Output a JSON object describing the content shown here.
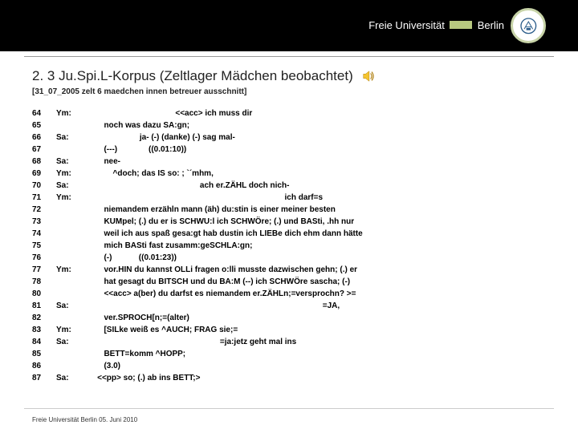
{
  "header": {
    "logo_text": "Freie Universität",
    "logo_city": "Berlin",
    "seal_stroke": "#c8d4a8",
    "seal_bg": "#ffffff"
  },
  "title": "2. 3 Ju.Spi.L-Korpus (Zeltlager Mädchen beobachtet)",
  "subtitle": "[31_07_2005 zelt 6 maedchen innen betreuer ausschnitt]",
  "transcript": [
    {
      "n": "64",
      "sp": "Ym:",
      "t": "                                       <<acc> ich muss dir"
    },
    {
      "n": "65",
      "sp": "",
      "t": "       noch was dazu SA:gn;"
    },
    {
      "n": "66",
      "sp": "Sa:",
      "t": "                       ja- (-) (danke) (-) sag mal-"
    },
    {
      "n": "67",
      "sp": "",
      "t": "       (---)              ((0.01:10))"
    },
    {
      "n": "68",
      "sp": "Sa:",
      "t": "       nee-"
    },
    {
      "n": "69",
      "sp": "Ym:",
      "t": "           ^doch; das IS so: ; `´mhm,"
    },
    {
      "n": "70",
      "sp": "Sa:",
      "t": "                                                  ach er.ZÄHL doch nich-"
    },
    {
      "n": "71",
      "sp": "Ym:",
      "t": "                                                                                        ich darf=s"
    },
    {
      "n": "72",
      "sp": "",
      "t": "       niemandem erzähln mann (äh) du:stin is einer meiner besten"
    },
    {
      "n": "73",
      "sp": "",
      "t": "       KUMpel; (.) du er is SCHWU:l ich SCHWÖre; (.) und BASti, .hh nur"
    },
    {
      "n": "74",
      "sp": "",
      "t": "       weil ich aus spaß gesa:gt hab dustin ich LIEBe dich ehm dann hätte"
    },
    {
      "n": "75",
      "sp": "",
      "t": "       mich BASti fast zusamm:geSCHLA:gn;"
    },
    {
      "n": "76",
      "sp": "",
      "t": "       (-)            ((0.01:23))"
    },
    {
      "n": "77",
      "sp": "Ym:",
      "t": "       vor.HIN du kannst OLLi fragen o:lli musste dazwischen gehn; (.) er"
    },
    {
      "n": "78",
      "sp": "",
      "t": "       hat gesagt du BITSCH und du BA:M (--) ich SCHWÖre sascha; (-)"
    },
    {
      "n": "80",
      "sp": "",
      "t": "       <<acc> a(ber) du darfst es niemandem er.ZÄHLn;=versprochn? >="
    },
    {
      "n": "81",
      "sp": "Sa:",
      "t": "                                                                                                         =JA,"
    },
    {
      "n": "82",
      "sp": "",
      "t": "       ver.SPROCH[n;=(alter)"
    },
    {
      "n": "83",
      "sp": "Ym:",
      "t": "       [SILke weiß es ^AUCH; FRAG sie;="
    },
    {
      "n": "84",
      "sp": "Sa:",
      "t": "                                                           =ja:jetz geht mal ins"
    },
    {
      "n": "85",
      "sp": "",
      "t": "       BETT=komm ^HOPP;"
    },
    {
      "n": "86",
      "sp": "",
      "t": "       (3.0)"
    },
    {
      "n": "87",
      "sp": "Sa:",
      "t": "    <<pp> so; (.) ab ins BETT;>"
    }
  ],
  "footer": "Freie Universität Berlin 05. Juni 2010",
  "colors": {
    "header_bg": "#000000",
    "text": "#000000",
    "speaker_yellow": "#f4c430"
  }
}
